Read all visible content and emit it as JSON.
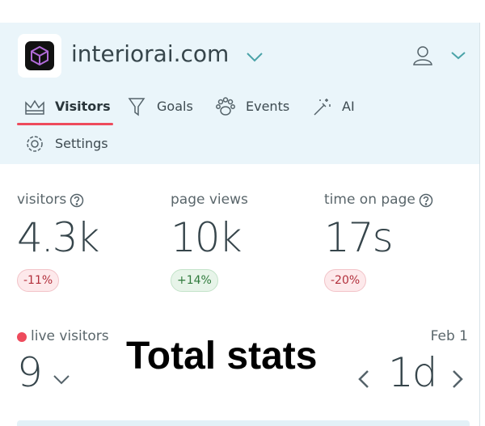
{
  "header": {
    "site": "interiorai.com",
    "tabs": [
      "Visitors",
      "Goals",
      "Events",
      "AI",
      "Settings"
    ]
  },
  "stats": [
    {
      "label": "visitors",
      "value": "4.3k",
      "change": "-11%"
    },
    {
      "label": "page views",
      "value": "10k",
      "change": "+14%"
    },
    {
      "label": "time on page",
      "value": "17s",
      "change": "-20%"
    }
  ],
  "live": {
    "label": "live visitors",
    "value": "9"
  },
  "date": "Feb 1",
  "range": "1d",
  "overlay_title": "Total stats"
}
